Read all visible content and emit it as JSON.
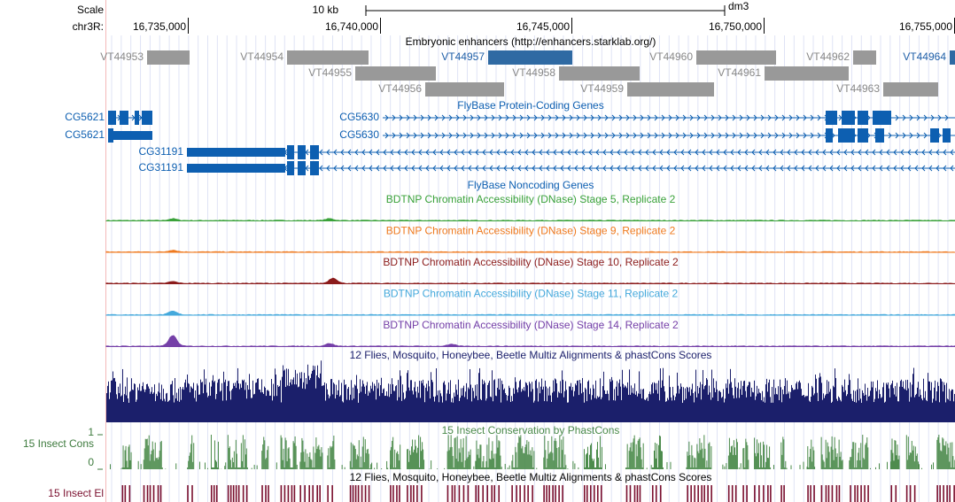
{
  "scale": {
    "label": "Scale",
    "size": "10 kb",
    "assembly": "dm3"
  },
  "ruler": {
    "chrom": "chr3R:",
    "positions": [
      "16,735,000",
      "16,740,000",
      "16,745,000",
      "16,750,000",
      "16,755,000"
    ]
  },
  "enhancers": {
    "title": "Embryonic enhancers (http://enhancers.starklab.org/)",
    "items": [
      "VT44953",
      "VT44954",
      "VT44957",
      "VT44960",
      "VT44962",
      "VT44964",
      "VT44955",
      "VT44958",
      "VT44961",
      "VT44956",
      "VT44959",
      "VT44963"
    ]
  },
  "genes": {
    "title": "FlyBase Protein-Coding Genes",
    "items": [
      "CG5621",
      "CG5621",
      "CG5630",
      "CG5630",
      "CG31191",
      "CG31191"
    ]
  },
  "noncoding": {
    "title": "FlyBase Noncoding Genes"
  },
  "dnase": [
    "BDTNP Chromatin Accessibility (DNase) Stage 5, Replicate 2",
    "BDTNP Chromatin Accessibility (DNase) Stage 9, Replicate 2",
    "BDTNP Chromatin Accessibility (DNase) Stage 10, Replicate 2",
    "BDTNP Chromatin Accessibility (DNase) Stage 11, Replicate 2",
    "BDTNP Chromatin Accessibility (DNase) Stage 14, Replicate 2"
  ],
  "multiz": {
    "title": "12 Flies, Mosquito, Honeybee, Beetle Multiz Alignments & phastCons Scores"
  },
  "conservation": {
    "title": "15 Insect Conservation by PhastCons",
    "label": "15 Insect Cons",
    "max": "1",
    "min": "0"
  },
  "elements": {
    "title": "12 Flies, Mosquito, Honeybee, Beetle Multiz Alignments & phastCons Scores",
    "label": "15 Insect El"
  }
}
